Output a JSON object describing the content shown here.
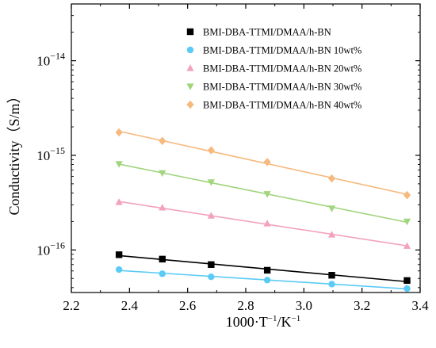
{
  "chart_data": {
    "type": "scatter",
    "xlabel_main": "1000·T",
    "xlabel_exp1": "−1",
    "xlabel_mid": "/K",
    "xlabel_exp2": "−1",
    "ylabel": "Conductivity（S/m）",
    "xlim": [
      2.2,
      3.4
    ],
    "ylim_log10": [
      -16.45,
      -13.4
    ],
    "y_scale": "log",
    "x_ticks": [
      "2.2",
      "2.4",
      "2.6",
      "2.8",
      "3.0",
      "3.2",
      "3.4"
    ],
    "y_ticks": [
      {
        "base": "10",
        "exp": "−14",
        "value": -14
      },
      {
        "base": "10",
        "exp": "−15",
        "value": -15
      },
      {
        "base": "10",
        "exp": "−16",
        "value": -16
      }
    ],
    "legend_position": "top-right",
    "series": [
      {
        "name": "BMI-DBA-TTMI/DMAA/h-BN",
        "color": "#000000",
        "marker": "square",
        "x": [
          2.364,
          2.513,
          2.681,
          2.874,
          3.096,
          3.355
        ],
        "y": [
          8.9e-17,
          8e-17,
          7e-17,
          6.1e-17,
          5.4e-17,
          4.75e-17
        ]
      },
      {
        "name": "BMI-DBA-TTMI/DMAA/h-BN 10wt%",
        "color": "#5BCBF5",
        "marker": "circle",
        "x": [
          2.364,
          2.513,
          2.681,
          2.874,
          3.096,
          3.355
        ],
        "y": [
          6.2e-17,
          5.6e-17,
          5.2e-17,
          4.8e-17,
          4.35e-17,
          3.9e-17
        ]
      },
      {
        "name": "BMI-DBA-TTMI/DMAA/h-BN 20wt%",
        "color": "#F3A2BE",
        "marker": "triangle-up",
        "x": [
          2.364,
          2.513,
          2.681,
          2.874,
          3.096,
          3.355
        ],
        "y": [
          3.2e-16,
          2.8e-16,
          2.3e-16,
          1.9e-16,
          1.45e-16,
          1.1e-16
        ]
      },
      {
        "name": "BMI-DBA-TTMI/DMAA/h-BN 30wt%",
        "color": "#A1D57E",
        "marker": "triangle-down",
        "x": [
          2.364,
          2.513,
          2.681,
          2.874,
          3.096,
          3.355
        ],
        "y": [
          8.1e-16,
          6.5e-16,
          5.2e-16,
          3.9e-16,
          2.75e-16,
          2e-16
        ]
      },
      {
        "name": "BMI-DBA-TTMI/DMAA/h-BN 40wt%",
        "color": "#F6B97E",
        "marker": "diamond",
        "x": [
          2.364,
          2.513,
          2.681,
          2.874,
          3.096,
          3.355
        ],
        "y": [
          1.75e-15,
          1.42e-15,
          1.13e-15,
          8.5e-16,
          5.7e-16,
          3.8e-16
        ]
      }
    ]
  }
}
